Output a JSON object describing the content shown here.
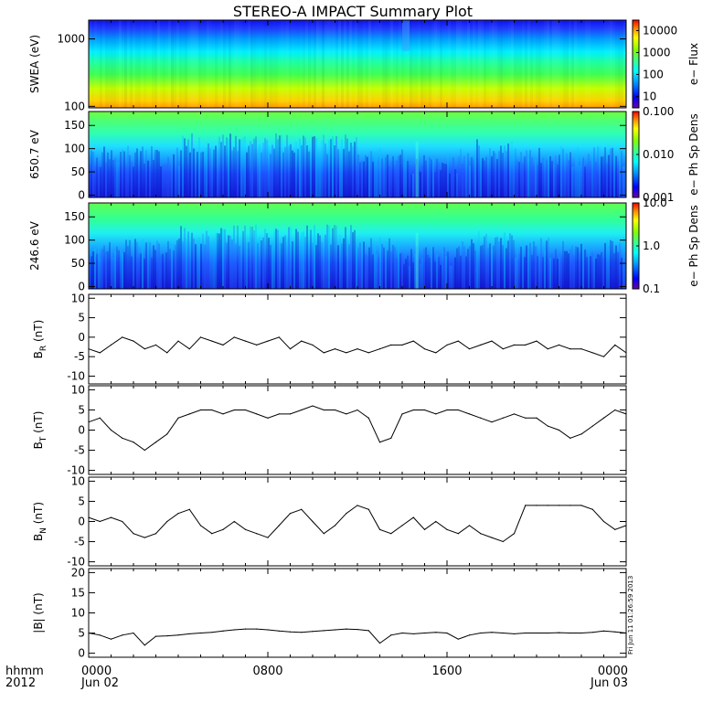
{
  "title": "STEREO-A IMPACT Summary Plot",
  "side_stamp": "Fri Jun 11 01:26:59 2013",
  "time_axis": {
    "prefix_top": "hhmm",
    "prefix_bottom": "2012",
    "tick_labels": [
      {
        "time": "0000",
        "date": "Jun 02",
        "hours": 0
      },
      {
        "time": "0800",
        "date": "",
        "hours": 8
      },
      {
        "time": "1600",
        "date": "",
        "hours": 16
      },
      {
        "time": "0000",
        "date": "Jun 03",
        "hours": 24
      }
    ],
    "range_hours": [
      0,
      24
    ]
  },
  "chart_data": [
    {
      "type": "heatmap",
      "ylabel": "SWEA (eV)",
      "yscale": "log",
      "ylim": [
        95,
        1900
      ],
      "yticks": [
        {
          "v": 1000,
          "label": "1000"
        },
        {
          "v": 100,
          "label": "100"
        }
      ],
      "colorbar": {
        "label": "e− Flux",
        "scale": "log",
        "range": [
          3,
          30000
        ],
        "ticks": [
          {
            "v": 10000,
            "label": "10000"
          },
          {
            "v": 1000,
            "label": "1000"
          },
          {
            "v": 100,
            "label": "100"
          },
          {
            "v": 10,
            "label": "10"
          }
        ]
      }
    },
    {
      "type": "heatmap",
      "ylabel": "650.7 eV",
      "ylim": [
        -5,
        180
      ],
      "yticks": [
        {
          "v": 150,
          "label": "150"
        },
        {
          "v": 100,
          "label": "100"
        },
        {
          "v": 50,
          "label": "50"
        },
        {
          "v": 0,
          "label": "0"
        }
      ],
      "colorbar": {
        "label": "e− Ph Sp Dens",
        "scale": "log",
        "range": [
          0.001,
          0.1
        ],
        "ticks": [
          {
            "v": 0.1,
            "label": "0.100"
          },
          {
            "v": 0.01,
            "label": "0.010"
          },
          {
            "v": 0.001,
            "label": "0.001"
          }
        ]
      }
    },
    {
      "type": "heatmap",
      "ylabel": "246.6 eV",
      "ylim": [
        -5,
        180
      ],
      "yticks": [
        {
          "v": 150,
          "label": "150"
        },
        {
          "v": 100,
          "label": "100"
        },
        {
          "v": 50,
          "label": "50"
        },
        {
          "v": 0,
          "label": "0"
        }
      ],
      "colorbar": {
        "label": "e− Ph Sp Dens",
        "scale": "log",
        "range": [
          0.1,
          10
        ],
        "ticks": [
          {
            "v": 10,
            "label": "10.0"
          },
          {
            "v": 1,
            "label": "1.0"
          },
          {
            "v": 0.1,
            "label": "0.1"
          }
        ]
      }
    },
    {
      "type": "line",
      "ylabel_main": "B",
      "ylabel_sub": "R",
      "ylabel_rest": " (nT)",
      "ylim": [
        -12,
        11
      ],
      "yticks": [
        10,
        5,
        0,
        -5,
        -10
      ],
      "x": [
        0,
        0.5,
        1,
        1.5,
        2,
        2.5,
        3,
        3.5,
        4,
        4.5,
        5,
        5.5,
        6,
        6.5,
        7,
        7.5,
        8,
        8.5,
        9,
        9.5,
        10,
        10.5,
        11,
        11.5,
        12,
        12.5,
        13,
        13.5,
        14,
        14.5,
        15,
        15.5,
        16,
        16.5,
        17,
        17.5,
        18,
        18.5,
        19,
        19.5,
        20,
        20.5,
        21,
        21.5,
        22,
        22.5,
        23,
        23.5,
        24
      ],
      "y": [
        -3,
        -4,
        -2,
        0,
        -1,
        -3,
        -2,
        -4,
        -1,
        -3,
        0,
        -1,
        -2,
        0,
        -1,
        -2,
        -1,
        0,
        -3,
        -1,
        -2,
        -4,
        -3,
        -4,
        -3,
        -4,
        -3,
        -2,
        -2,
        -1,
        -3,
        -4,
        -2,
        -1,
        -3,
        -2,
        -1,
        -3,
        -2,
        -2,
        -1,
        -3,
        -2,
        -3,
        -3,
        -4,
        -5,
        -2,
        -4
      ]
    },
    {
      "type": "line",
      "ylabel_main": "B",
      "ylabel_sub": "T",
      "ylabel_rest": " (nT)",
      "ylim": [
        -11,
        11
      ],
      "yticks": [
        10,
        5,
        0,
        -5,
        -10
      ],
      "x": [
        0,
        0.5,
        1,
        1.5,
        2,
        2.5,
        3,
        3.5,
        4,
        4.5,
        5,
        5.5,
        6,
        6.5,
        7,
        7.5,
        8,
        8.5,
        9,
        9.5,
        10,
        10.5,
        11,
        11.5,
        12,
        12.5,
        13,
        13.5,
        14,
        14.5,
        15,
        15.5,
        16,
        16.5,
        17,
        17.5,
        18,
        18.5,
        19,
        19.5,
        20,
        20.5,
        21,
        21.5,
        22,
        22.5,
        23,
        23.5,
        24
      ],
      "y": [
        2,
        3,
        0,
        -2,
        -3,
        -5,
        -3,
        -1,
        3,
        4,
        5,
        5,
        4,
        5,
        5,
        4,
        3,
        4,
        4,
        5,
        6,
        5,
        5,
        4,
        5,
        3,
        -3,
        -2,
        4,
        5,
        5,
        4,
        5,
        5,
        4,
        3,
        2,
        3,
        4,
        3,
        3,
        1,
        0,
        -2,
        -1,
        1,
        3,
        5,
        4
      ]
    },
    {
      "type": "line",
      "ylabel_main": "B",
      "ylabel_sub": "N",
      "ylabel_rest": " (nT)",
      "ylim": [
        -11,
        11
      ],
      "yticks": [
        10,
        5,
        0,
        -5,
        -10
      ],
      "x": [
        0,
        0.5,
        1,
        1.5,
        2,
        2.5,
        3,
        3.5,
        4,
        4.5,
        5,
        5.5,
        6,
        6.5,
        7,
        7.5,
        8,
        8.5,
        9,
        9.5,
        10,
        10.5,
        11,
        11.5,
        12,
        12.5,
        13,
        13.5,
        14,
        14.5,
        15,
        15.5,
        16,
        16.5,
        17,
        17.5,
        18,
        18.5,
        19,
        19.5,
        20,
        20.5,
        21,
        21.5,
        22,
        22.5,
        23,
        23.5,
        24
      ],
      "y": [
        1,
        0,
        1,
        0,
        -3,
        -4,
        -3,
        0,
        2,
        3,
        -1,
        -3,
        -2,
        0,
        -2,
        -3,
        -4,
        -1,
        2,
        3,
        0,
        -3,
        -1,
        2,
        4,
        3,
        -2,
        -3,
        -1,
        1,
        -2,
        0,
        -2,
        -3,
        -1,
        -3,
        -4,
        -5,
        -3,
        4,
        4,
        4,
        4,
        4,
        4,
        3,
        0,
        -2,
        -1
      ]
    },
    {
      "type": "line",
      "ylabel": "|B| (nT)",
      "ylim": [
        -1,
        21
      ],
      "yticks": [
        20,
        15,
        10,
        5,
        0
      ],
      "x": [
        0,
        0.5,
        1,
        1.5,
        2,
        2.5,
        3,
        3.5,
        4,
        4.5,
        5,
        5.5,
        6,
        6.5,
        7,
        7.5,
        8,
        8.5,
        9,
        9.5,
        10,
        10.5,
        11,
        11.5,
        12,
        12.5,
        13,
        13.5,
        14,
        14.5,
        15,
        15.5,
        16,
        16.5,
        17,
        17.5,
        18,
        18.5,
        19,
        19.5,
        20,
        20.5,
        21,
        21.5,
        22,
        22.5,
        23,
        23.5,
        24
      ],
      "y": [
        5,
        4.5,
        3.5,
        4.5,
        5,
        2,
        4.2,
        4.3,
        4.5,
        4.8,
        5,
        5.2,
        5.5,
        5.8,
        6,
        6,
        5.8,
        5.5,
        5.3,
        5.2,
        5.4,
        5.6,
        5.8,
        6,
        5.9,
        5.6,
        2.5,
        4.5,
        5,
        4.8,
        5,
        5.2,
        5,
        3.5,
        4.5,
        5,
        5.2,
        5,
        4.8,
        5,
        5,
        5,
        5.1,
        5,
        5,
        5.2,
        5.5,
        5.3,
        5
      ]
    }
  ]
}
